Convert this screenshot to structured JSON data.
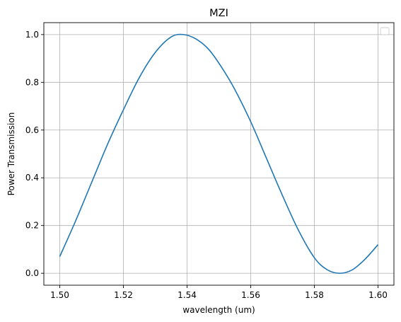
{
  "chart_data": {
    "type": "line",
    "title": "MZI",
    "xlabel": "wavelength (um)",
    "ylabel": "Power Transmission",
    "xlim": [
      1.495,
      1.605
    ],
    "ylim": [
      -0.05,
      1.05
    ],
    "x_ticks": [
      1.5,
      1.52,
      1.54,
      1.56,
      1.58,
      1.6
    ],
    "x_tick_labels": [
      "1.50",
      "1.52",
      "1.54",
      "1.56",
      "1.58",
      "1.60"
    ],
    "y_ticks": [
      0.0,
      0.2,
      0.4,
      0.6,
      0.8,
      1.0
    ],
    "y_tick_labels": [
      "0.0",
      "0.2",
      "0.4",
      "0.6",
      "0.8",
      "1.0"
    ],
    "grid": true,
    "legend": "top-right",
    "legend_entries": [],
    "series": [
      {
        "color": "#1f77b4",
        "x": [
          1.5,
          1.505,
          1.51,
          1.515,
          1.52,
          1.525,
          1.53,
          1.535,
          1.539,
          1.543,
          1.547,
          1.551,
          1.555,
          1.56,
          1.565,
          1.57,
          1.575,
          1.58,
          1.584,
          1.588,
          1.592,
          1.596,
          1.6
        ],
        "y": [
          0.07,
          0.22,
          0.38,
          0.54,
          0.685,
          0.82,
          0.925,
          0.99,
          1.0,
          0.98,
          0.935,
          0.86,
          0.77,
          0.635,
          0.48,
          0.325,
          0.18,
          0.065,
          0.015,
          0.0,
          0.015,
          0.06,
          0.12
        ]
      }
    ]
  }
}
